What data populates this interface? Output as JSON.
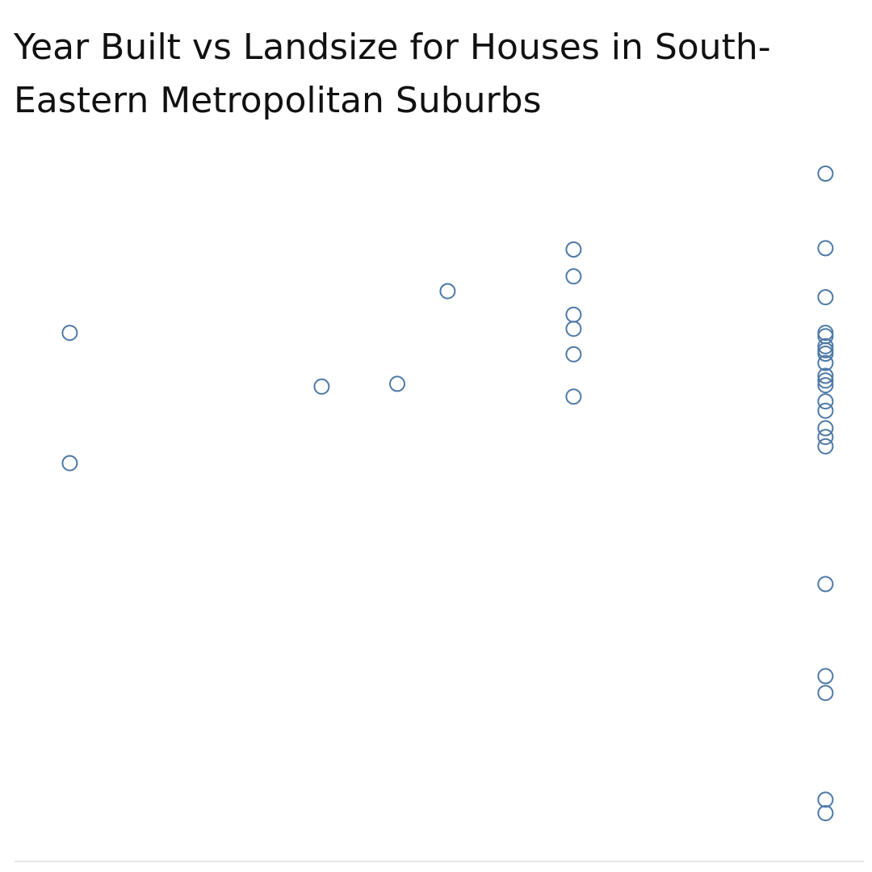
{
  "chart_data": {
    "type": "scatter",
    "title": "Year Built vs Landsize for Houses in South-Eastern Metropolitan Suburbs",
    "xlabel": "",
    "ylabel": "",
    "grid": false,
    "xlim": [
      0,
      100
    ],
    "ylim": [
      0,
      100
    ],
    "point_color": "#4e79a7",
    "baseline_color": "#e6e6e6",
    "points": [
      {
        "x": 6.0,
        "y": 78.1
      },
      {
        "x": 6.0,
        "y": 58.7
      },
      {
        "x": 36.0,
        "y": 70.1
      },
      {
        "x": 45.0,
        "y": 70.5
      },
      {
        "x": 51.0,
        "y": 84.3
      },
      {
        "x": 66.0,
        "y": 90.5
      },
      {
        "x": 66.0,
        "y": 86.5
      },
      {
        "x": 66.0,
        "y": 80.8
      },
      {
        "x": 66.0,
        "y": 78.7
      },
      {
        "x": 66.0,
        "y": 74.9
      },
      {
        "x": 66.0,
        "y": 68.6
      },
      {
        "x": 96.0,
        "y": 101.8
      },
      {
        "x": 96.0,
        "y": 90.7
      },
      {
        "x": 96.0,
        "y": 83.4
      },
      {
        "x": 96.0,
        "y": 78.1
      },
      {
        "x": 96.0,
        "y": 77.6
      },
      {
        "x": 96.0,
        "y": 76.1
      },
      {
        "x": 96.0,
        "y": 75.5
      },
      {
        "x": 96.0,
        "y": 75.0
      },
      {
        "x": 96.0,
        "y": 73.6
      },
      {
        "x": 96.0,
        "y": 71.7
      },
      {
        "x": 96.0,
        "y": 71.0
      },
      {
        "x": 96.0,
        "y": 70.3
      },
      {
        "x": 96.0,
        "y": 67.9
      },
      {
        "x": 96.0,
        "y": 66.5
      },
      {
        "x": 96.0,
        "y": 63.9
      },
      {
        "x": 96.0,
        "y": 62.6
      },
      {
        "x": 96.0,
        "y": 61.2
      },
      {
        "x": 96.0,
        "y": 40.7
      },
      {
        "x": 96.0,
        "y": 27.0
      },
      {
        "x": 96.0,
        "y": 24.5
      },
      {
        "x": 96.0,
        "y": 8.6
      },
      {
        "x": 96.0,
        "y": 6.6
      }
    ]
  }
}
